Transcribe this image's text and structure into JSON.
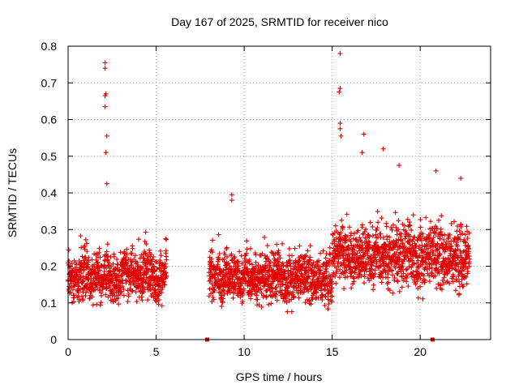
{
  "chart_data": {
    "type": "scatter",
    "title": "Day 167 of 2025, SRMTID for receiver nico",
    "xlabel": "GPS time / hours",
    "ylabel": "SRMTID / TECUs",
    "xlim": [
      0,
      24
    ],
    "ylim": [
      0,
      0.8
    ],
    "xticks": [
      0,
      5,
      10,
      15,
      20
    ],
    "xtick_labels": [
      "0",
      "5",
      "10",
      "15",
      "20"
    ],
    "yticks": [
      0,
      0.1,
      0.2,
      0.3,
      0.4,
      0.5,
      0.6,
      0.7,
      0.8
    ],
    "ytick_labels": [
      "0",
      "0.1",
      "0.2",
      "0.3",
      "0.4",
      "0.5",
      "0.6",
      "0.7",
      "0.8"
    ],
    "grid": true,
    "marker": "plus",
    "color": "#e00000",
    "series": [
      {
        "name": "SRMTID",
        "segments": [
          {
            "x_start": 0.0,
            "x_end": 5.6,
            "typical_range": [
              0.05,
              0.3
            ]
          },
          {
            "x_start": 8.0,
            "x_end": 15.0,
            "typical_range": [
              0.04,
              0.3
            ]
          },
          {
            "x_start": 15.0,
            "x_end": 22.8,
            "typical_range": [
              0.06,
              0.4
            ]
          }
        ],
        "peaks": [
          {
            "x": 2.1,
            "y": 0.755
          },
          {
            "x": 2.1,
            "y": 0.74
          },
          {
            "x": 2.15,
            "y": 0.67
          },
          {
            "x": 2.1,
            "y": 0.665
          },
          {
            "x": 2.1,
            "y": 0.635
          },
          {
            "x": 2.2,
            "y": 0.555
          },
          {
            "x": 2.15,
            "y": 0.51
          },
          {
            "x": 2.2,
            "y": 0.425
          },
          {
            "x": 9.3,
            "y": 0.395
          },
          {
            "x": 9.3,
            "y": 0.38
          },
          {
            "x": 15.45,
            "y": 0.78
          },
          {
            "x": 15.45,
            "y": 0.685
          },
          {
            "x": 15.4,
            "y": 0.675
          },
          {
            "x": 15.45,
            "y": 0.59
          },
          {
            "x": 15.45,
            "y": 0.575
          },
          {
            "x": 15.5,
            "y": 0.555
          },
          {
            "x": 16.8,
            "y": 0.56
          },
          {
            "x": 17.9,
            "y": 0.52
          },
          {
            "x": 16.7,
            "y": 0.51
          },
          {
            "x": 18.8,
            "y": 0.475
          },
          {
            "x": 20.9,
            "y": 0.46
          },
          {
            "x": 22.3,
            "y": 0.44
          }
        ],
        "zero_points": [
          {
            "x": 7.9,
            "y": 0.0
          },
          {
            "x": 20.7,
            "y": 0.0
          }
        ]
      }
    ]
  }
}
